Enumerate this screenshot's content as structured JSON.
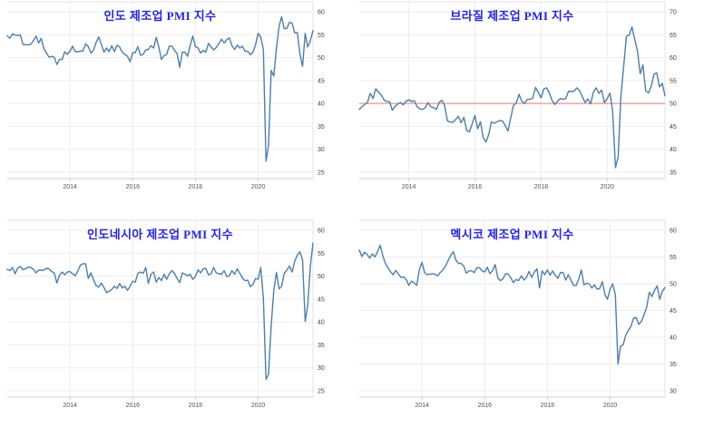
{
  "page": {
    "background_color": "#ffffff"
  },
  "chart_data": [
    {
      "type": "line",
      "title": "인도 제조업 PMI 지수",
      "title_color": "#2222ee",
      "line_color": "#4d7eae",
      "x_start": "2012-01",
      "frequency": "monthly",
      "x_labels": [
        2014,
        2016,
        2018,
        2020
      ],
      "y_min": 25,
      "y_max": 60,
      "y_ticks": [
        25,
        30,
        35,
        40,
        45,
        50,
        55,
        60
      ],
      "grid": true,
      "legend": "none",
      "reference_line": null,
      "values": [
        54.8,
        54.2,
        55.2,
        54.9,
        54.8,
        55.0,
        52.9,
        52.8,
        52.8,
        52.9,
        53.7,
        54.7,
        53.2,
        54.2,
        52.0,
        51.0,
        50.1,
        50.3,
        50.1,
        48.5,
        49.6,
        49.6,
        51.3,
        50.7,
        51.4,
        52.5,
        51.3,
        51.3,
        51.4,
        51.5,
        53.0,
        52.4,
        51.0,
        51.6,
        53.3,
        54.5,
        52.9,
        51.2,
        52.1,
        51.3,
        52.6,
        51.3,
        52.7,
        52.3,
        51.2,
        50.7,
        50.3,
        49.1,
        51.1,
        51.1,
        52.4,
        50.5,
        50.7,
        51.7,
        51.8,
        52.6,
        52.1,
        54.4,
        52.3,
        49.6,
        50.4,
        50.7,
        52.5,
        52.5,
        51.6,
        50.9,
        47.9,
        51.2,
        51.2,
        50.3,
        52.6,
        54.7,
        52.4,
        52.1,
        51.0,
        51.6,
        51.2,
        53.1,
        52.3,
        51.7,
        52.2,
        53.1,
        54.0,
        53.2,
        53.9,
        54.3,
        52.6,
        51.8,
        52.7,
        52.1,
        52.5,
        51.4,
        51.4,
        50.6,
        51.2,
        52.7,
        55.3,
        54.5,
        51.8,
        27.4,
        30.8,
        47.2,
        46.0,
        52.0,
        56.8,
        58.9,
        56.3,
        56.4,
        57.7,
        57.5,
        55.4,
        55.5,
        50.8,
        48.1,
        55.3,
        52.3,
        53.7,
        55.9
      ]
    },
    {
      "type": "line",
      "title": "브라질 제조업 PMI 지수",
      "title_color": "#2222ee",
      "line_color": "#4d7eae",
      "x_start": "2012-07",
      "frequency": "monthly",
      "x_labels": [
        2014,
        2016,
        2018,
        2020
      ],
      "y_min": 35,
      "y_max": 70,
      "y_ticks": [
        35,
        40,
        45,
        50,
        55,
        60,
        65,
        70
      ],
      "grid": true,
      "legend": "none",
      "reference_line": {
        "value": 50,
        "color": "#f0948e"
      },
      "values": [
        48.7,
        49.3,
        49.8,
        50.2,
        52.2,
        51.1,
        53.2,
        52.5,
        51.8,
        50.8,
        50.4,
        50.4,
        48.5,
        49.4,
        49.9,
        50.2,
        49.7,
        50.5,
        50.8,
        50.4,
        50.6,
        49.3,
        48.8,
        48.7,
        49.1,
        50.2,
        49.3,
        49.1,
        48.7,
        50.2,
        50.7,
        49.6,
        46.2,
        46.0,
        45.9,
        46.5,
        47.2,
        45.8,
        47.0,
        44.1,
        43.8,
        45.6,
        47.4,
        44.5,
        46.0,
        42.6,
        41.6,
        43.2,
        46.0,
        45.7,
        46.0,
        46.3,
        46.2,
        45.2,
        44.0,
        46.9,
        49.6,
        50.1,
        52.0,
        50.5,
        50.0,
        50.9,
        50.9,
        51.2,
        53.5,
        52.4,
        51.2,
        53.2,
        53.4,
        52.3,
        50.7,
        49.8,
        50.5,
        51.1,
        50.9,
        51.1,
        52.7,
        52.6,
        52.7,
        53.4,
        52.8,
        51.5,
        50.2,
        51.0,
        49.9,
        52.5,
        53.4,
        52.2,
        52.9,
        50.2,
        51.0,
        52.3,
        48.4,
        36.0,
        38.3,
        51.6,
        58.2,
        64.7,
        64.9,
        66.7,
        64.0,
        61.5,
        56.5,
        58.4,
        52.8,
        52.3,
        53.7,
        56.4,
        56.7,
        53.6,
        54.4,
        51.7
      ]
    },
    {
      "type": "line",
      "title": "인도네시아 제조업 PMI 지수",
      "title_color": "#2222ee",
      "line_color": "#4d7eae",
      "x_start": "2012-01",
      "frequency": "monthly",
      "x_labels": [
        2014,
        2016,
        2018,
        2020
      ],
      "y_min": 25,
      "y_max": 60,
      "y_ticks": [
        25,
        30,
        35,
        40,
        45,
        50,
        55,
        60
      ],
      "grid": true,
      "legend": "none",
      "reference_line": null,
      "values": [
        51.5,
        51.2,
        51.9,
        50.5,
        51.8,
        52.1,
        51.4,
        51.6,
        52.0,
        51.9,
        51.5,
        50.7,
        51.3,
        51.3,
        51.3,
        51.7,
        51.6,
        51.0,
        50.7,
        48.5,
        50.2,
        50.9,
        50.3,
        50.9,
        51.0,
        50.5,
        50.1,
        51.1,
        52.4,
        52.7,
        52.7,
        49.5,
        50.7,
        49.2,
        48.0,
        47.6,
        48.5,
        47.5,
        46.4,
        46.7,
        47.1,
        47.8,
        47.3,
        48.4,
        47.4,
        47.8,
        46.9,
        47.8,
        48.9,
        48.7,
        50.6,
        50.9,
        50.6,
        51.9,
        48.4,
        50.4,
        50.9,
        48.7,
        49.7,
        49.0,
        50.4,
        49.3,
        50.5,
        51.2,
        50.6,
        49.5,
        48.6,
        50.7,
        50.4,
        50.1,
        50.4,
        49.3,
        49.9,
        51.4,
        50.7,
        51.6,
        51.7,
        50.3,
        50.5,
        51.9,
        50.7,
        50.5,
        50.4,
        51.2,
        49.9,
        50.1,
        51.2,
        50.4,
        51.6,
        50.6,
        49.6,
        49.0,
        49.1,
        47.7,
        48.2,
        49.5,
        49.3,
        51.9,
        45.3,
        27.5,
        28.6,
        39.1,
        46.9,
        50.8,
        47.2,
        47.8,
        50.6,
        51.3,
        52.2,
        50.9,
        53.2,
        54.6,
        55.3,
        53.5,
        40.1,
        43.7,
        52.2,
        57.2
      ]
    },
    {
      "type": "line",
      "title": "멕시코 제조업 PMI 지수",
      "title_color": "#2222ee",
      "line_color": "#4d7eae",
      "x_start": "2012-01",
      "frequency": "monthly",
      "x_labels": [
        2014,
        2016,
        2018,
        2020
      ],
      "y_min": 30,
      "y_max": 60,
      "y_ticks": [
        30,
        35,
        40,
        45,
        50,
        55,
        60
      ],
      "grid": true,
      "legend": "none",
      "reference_line": null,
      "values": [
        56.3,
        55.1,
        55.9,
        55.5,
        54.8,
        55.6,
        55.0,
        56.0,
        57.2,
        55.3,
        53.8,
        53.0,
        52.2,
        51.7,
        52.5,
        51.8,
        51.2,
        51.3,
        50.8,
        49.7,
        50.5,
        50.2,
        49.7,
        52.6,
        54.0,
        52.1,
        51.7,
        51.8,
        51.9,
        51.8,
        51.5,
        52.1,
        52.6,
        53.3,
        54.3,
        55.3,
        56.0,
        54.4,
        53.8,
        53.8,
        53.3,
        52.0,
        52.4,
        52.4,
        52.1,
        53.0,
        53.0,
        52.4,
        52.2,
        53.1,
        51.9,
        52.4,
        53.6,
        51.1,
        50.6,
        50.9,
        51.9,
        51.8,
        51.1,
        50.2,
        50.8,
        50.6,
        51.5,
        50.7,
        51.2,
        52.3,
        51.2,
        52.2,
        52.8,
        49.2,
        52.4,
        51.7,
        52.6,
        51.6,
        52.4,
        51.6,
        51.0,
        52.1,
        52.1,
        50.7,
        51.7,
        50.7,
        49.7,
        49.7,
        50.9,
        52.6,
        49.8,
        50.1,
        50.0,
        49.2,
        49.8,
        49.0,
        49.1,
        50.4,
        48.0,
        47.1,
        49.0,
        50.0,
        47.9,
        35.0,
        38.3,
        38.6,
        40.4,
        41.3,
        42.1,
        43.6,
        43.7,
        42.4,
        43.0,
        44.2,
        45.6,
        48.4,
        47.6,
        48.8,
        49.6,
        47.1,
        48.6,
        49.3
      ]
    }
  ]
}
